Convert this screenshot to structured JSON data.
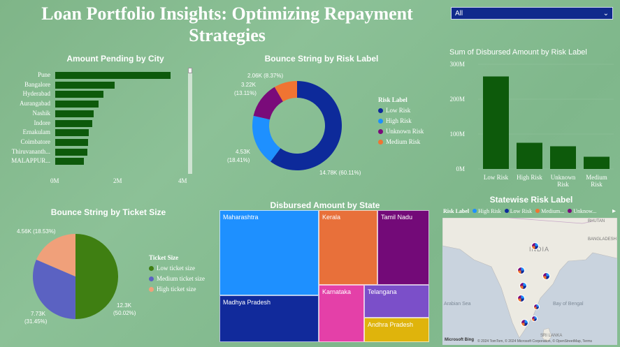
{
  "header": {
    "title": "Loan Portfolio Insights: Optimizing Repayment Strategies",
    "filter_value": "All"
  },
  "amount_by_city": {
    "title": "Amount Pending by City",
    "ticks": [
      "0M",
      "2M",
      "4M"
    ],
    "cities": [
      "Pune",
      "Bangalore",
      "Hyderabad",
      "Aurangabad",
      "Nashik",
      "Indore",
      "Ernakulam",
      "Coimbatore",
      "Thiruvananth...",
      "MALAPPUR..."
    ]
  },
  "bounce_by_risk": {
    "title": "Bounce String by Risk Label",
    "legend_title": "Risk Label",
    "legend": [
      "Low Risk",
      "High Risk",
      "Unknown Risk",
      "Medium Risk"
    ],
    "labels": [
      "14.78K (60.11%)",
      "4.53K",
      "(18.41%)",
      "3.22K",
      "(13.11%)",
      "2.06K (8.37%)"
    ]
  },
  "disbursed_by_risk": {
    "title": "Sum of Disbursed Amount by Risk Label",
    "ticks": [
      "300M",
      "200M",
      "100M",
      "0M"
    ],
    "categories": [
      "Low Risk",
      "High Risk",
      "Unknown Risk",
      "Medium Risk"
    ]
  },
  "bounce_by_ticket": {
    "title": "Bounce String by Ticket Size",
    "legend_title": "Ticket Size",
    "legend": [
      "Low ticket size",
      "Medium ticket size",
      "High ticket size"
    ],
    "labels": [
      "12.3K",
      "(50.02%)",
      "7.73K",
      "(31.45%)",
      "4.56K (18.53%)"
    ]
  },
  "disbursed_by_state": {
    "title": "Disbursed Amount by State",
    "states": [
      "Maharashtra",
      "Kerala",
      "Tamil Nadu",
      "Madhya Pradesh",
      "Karnataka",
      "Telangana",
      "Andhra Pradesh"
    ]
  },
  "statewise_risk": {
    "title": "Statewise Risk Label",
    "legend_title": "Risk Label",
    "legend": [
      "High Risk",
      "Low Risk",
      "Medium...",
      "Unknow..."
    ],
    "map_labels": [
      "BHUTAN",
      "BANGLADESH",
      "INDIA",
      "Arabian Sea",
      "Bay of Bengal",
      "SRI LANKA"
    ],
    "footer": "© 2024 TomTom, © 2024 Microsoft Corporation, © OpenStreetMap, Terms",
    "brand": "Microsoft Bing"
  },
  "colors": {
    "dark_green": "#0d5a0b",
    "low_risk": "#0d2a9a",
    "high_risk": "#1e90ff",
    "unknown_risk": "#7a0b7a",
    "medium_risk": "#f07432"
  },
  "chart_data": [
    {
      "type": "bar",
      "title": "Amount Pending by City",
      "orientation": "horizontal",
      "categories": [
        "Pune",
        "Bangalore",
        "Hyderabad",
        "Aurangabad",
        "Nashik",
        "Indore",
        "Ernakulam",
        "Coimbatore",
        "Thiruvananth...",
        "MALAPPUR..."
      ],
      "values": [
        3.6,
        1.85,
        1.5,
        1.35,
        1.2,
        1.15,
        1.05,
        1.03,
        1.0,
        0.9
      ],
      "xlim": [
        0,
        4
      ],
      "unit": "M"
    },
    {
      "type": "pie",
      "title": "Bounce String by Risk Label",
      "donut": true,
      "categories": [
        "Low Risk",
        "High Risk",
        "Unknown Risk",
        "Medium Risk"
      ],
      "values": [
        14.78,
        4.53,
        3.22,
        2.06
      ],
      "percent": [
        60.11,
        18.41,
        13.11,
        8.37
      ]
    },
    {
      "type": "bar",
      "title": "Sum of Disbursed Amount by Risk Label",
      "categories": [
        "Low Risk",
        "High Risk",
        "Unknown Risk",
        "Medium Risk"
      ],
      "values": [
        265,
        75,
        65,
        35
      ],
      "ylim": [
        0,
        300
      ],
      "unit": "M"
    },
    {
      "type": "pie",
      "title": "Bounce String by Ticket Size",
      "categories": [
        "Low ticket size",
        "Medium ticket size",
        "High ticket size"
      ],
      "values": [
        12.3,
        7.73,
        4.56
      ],
      "percent": [
        50.02,
        31.45,
        18.53
      ]
    }
  ]
}
